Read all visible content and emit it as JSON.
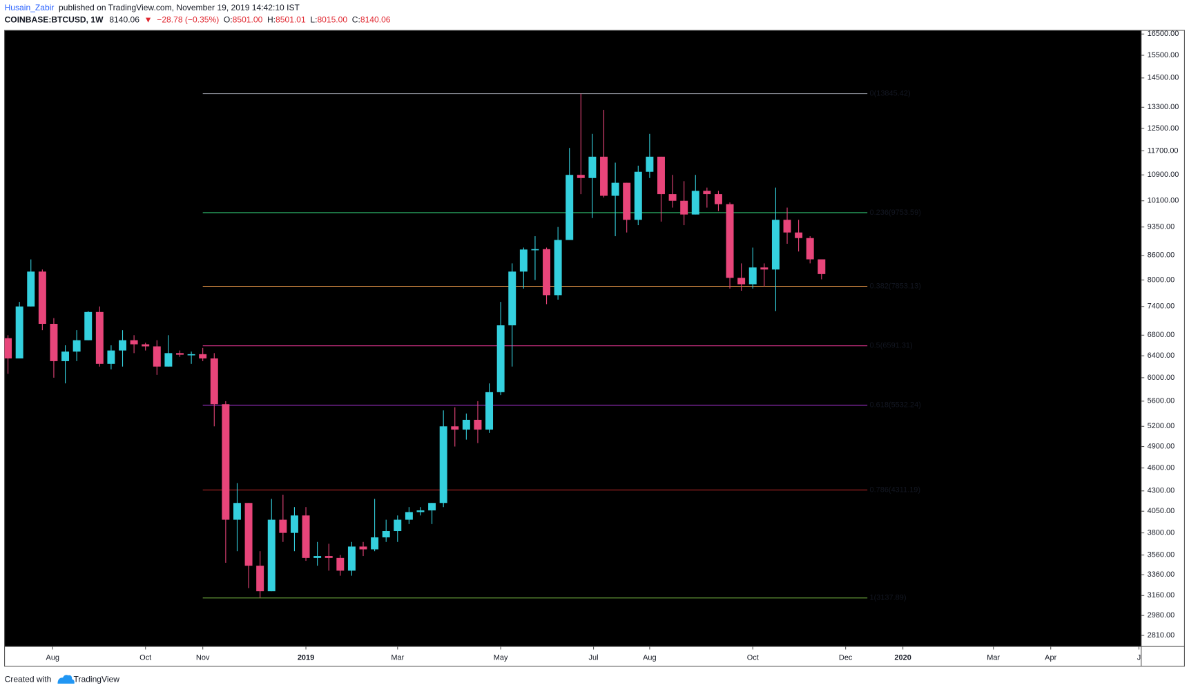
{
  "header": {
    "author": "Husain_Zabir",
    "published": "published on TradingView.com, November 19, 2019 14:42:10 IST",
    "symbol": "COINBASE:BTCUSD, 1W",
    "last": "8140.06",
    "arrow": "▼",
    "change": "−28.78 (−0.35%)",
    "ohlc": [
      {
        "key": "O:",
        "value": "8501.00"
      },
      {
        "key": "H:",
        "value": "8501.01"
      },
      {
        "key": "L:",
        "value": "8015.00"
      },
      {
        "key": "C:",
        "value": "8140.06"
      }
    ]
  },
  "chart_data": {
    "type": "candlestick",
    "categories": [
      null,
      null,
      null,
      null,
      null,
      null,
      null,
      null,
      null,
      null,
      null,
      null,
      null,
      null,
      null,
      null,
      null,
      null,
      null,
      null,
      null,
      null,
      null,
      null,
      null,
      null,
      null,
      null,
      null,
      null,
      null,
      null,
      null,
      null,
      null,
      null,
      null,
      null,
      null,
      null,
      null,
      null,
      null,
      null,
      null,
      null,
      null,
      null,
      null,
      null,
      null,
      null,
      null,
      null,
      null,
      null,
      null,
      null,
      null,
      null,
      null,
      null,
      null,
      null,
      null,
      null,
      null,
      null,
      null,
      null,
      null,
      null
    ],
    "open": [
      6740,
      6350,
      7400,
      8200,
      7030,
      6300,
      6480,
      6700,
      7280,
      6250,
      6500,
      6700,
      6620,
      6580,
      6200,
      6450,
      6420,
      6430,
      6350,
      5550,
      3950,
      4150,
      3450,
      3200,
      3950,
      3800,
      4000,
      3530,
      3550,
      3530,
      3400,
      3650,
      3620,
      3750,
      3820,
      3950,
      4040,
      4060,
      4150,
      5200,
      5150,
      5300,
      5150,
      5750,
      7000,
      8200,
      8750,
      8760,
      7650,
      9000,
      10900,
      10800,
      11500,
      10250,
      10650,
      9550,
      11000,
      11500,
      10300,
      10100,
      9700,
      10400,
      10300,
      10000,
      8050,
      7900,
      8300,
      8250,
      9550,
      9200,
      9050,
      8501
    ],
    "high": [
      6800,
      7500,
      8500,
      8250,
      7150,
      6600,
      6900,
      7300,
      7400,
      6600,
      6900,
      6800,
      6650,
      6700,
      6800,
      6500,
      6480,
      6550,
      6450,
      5600,
      4400,
      4150,
      3600,
      4200,
      4250,
      4100,
      4100,
      3700,
      3680,
      3560,
      3700,
      3700,
      4200,
      3950,
      4000,
      4100,
      4100,
      4150,
      5450,
      5500,
      5400,
      5600,
      5900,
      7500,
      8400,
      8800,
      9100,
      8800,
      9350,
      11800,
      13845.42,
      12300,
      13200,
      11300,
      10650,
      11200,
      12300,
      11500,
      10900,
      10700,
      10900,
      10500,
      10400,
      10050,
      8400,
      8800,
      8400,
      10500,
      9900,
      9550,
      9100,
      8501.01
    ],
    "low": [
      6070,
      6350,
      7400,
      6900,
      6000,
      5900,
      6300,
      6700,
      6200,
      6150,
      6200,
      6450,
      6500,
      6050,
      6200,
      6380,
      6250,
      6300,
      5200,
      3480,
      3600,
      3230,
      3140,
      3200,
      3700,
      3600,
      3500,
      3450,
      3400,
      3350,
      3350,
      3550,
      3600,
      3700,
      3700,
      3900,
      4000,
      3900,
      4100,
      4900,
      5000,
      4950,
      5100,
      5700,
      6200,
      7800,
      8000,
      7450,
      7550,
      9000,
      10300,
      9600,
      10200,
      9100,
      9200,
      9400,
      10800,
      9500,
      9900,
      9400,
      9700,
      9900,
      9800,
      7800,
      7750,
      7800,
      7850,
      7300,
      8900,
      8700,
      8400,
      8015
    ],
    "close": [
      6350,
      7400,
      8200,
      7030,
      6300,
      6480,
      6700,
      7280,
      6250,
      6500,
      6700,
      6620,
      6580,
      6200,
      6450,
      6420,
      6430,
      6350,
      5550,
      3950,
      4150,
      3450,
      3200,
      3950,
      3800,
      4000,
      3530,
      3550,
      3530,
      3400,
      3650,
      3620,
      3750,
      3820,
      3950,
      4040,
      4060,
      4150,
      5200,
      5150,
      5300,
      5150,
      5750,
      7000,
      8200,
      8750,
      8760,
      7650,
      9000,
      10900,
      10800,
      11500,
      10250,
      10650,
      9550,
      11000,
      11500,
      10300,
      10100,
      9700,
      10400,
      10300,
      10000,
      8050,
      7900,
      8300,
      8250,
      9550,
      9200,
      9050,
      8501,
      8140.06
    ],
    "up_color": "#34d0de",
    "down_color": "#e8457a",
    "log_scale": true,
    "ylim": [
      2720,
      16680
    ],
    "yticks": [
      {
        "value": 16500,
        "label": "16500.00"
      },
      {
        "value": 15500,
        "label": "15500.00"
      },
      {
        "value": 14500,
        "label": "14500.00"
      },
      {
        "value": 13300,
        "label": "13300.00"
      },
      {
        "value": 12500,
        "label": "12500.00"
      },
      {
        "value": 11700,
        "label": "11700.00"
      },
      {
        "value": 10900,
        "label": "10900.00"
      },
      {
        "value": 10100,
        "label": "10100.00"
      },
      {
        "value": 9350,
        "label": "9350.00"
      },
      {
        "value": 8600,
        "label": "8600.00"
      },
      {
        "value": 8000,
        "label": "8000.00"
      },
      {
        "value": 7400,
        "label": "7400.00"
      },
      {
        "value": 6800,
        "label": "6800.00"
      },
      {
        "value": 6400,
        "label": "6400.00"
      },
      {
        "value": 6000,
        "label": "6000.00"
      },
      {
        "value": 5600,
        "label": "5600.00"
      },
      {
        "value": 5200,
        "label": "5200.00"
      },
      {
        "value": 4900,
        "label": "4900.00"
      },
      {
        "value": 4600,
        "label": "4600.00"
      },
      {
        "value": 4300,
        "label": "4300.00"
      },
      {
        "value": 4050,
        "label": "4050.00"
      },
      {
        "value": 3800,
        "label": "3800.00"
      },
      {
        "value": 3560,
        "label": "3560.00"
      },
      {
        "value": 3360,
        "label": "3360.00"
      },
      {
        "value": 3160,
        "label": "3160.00"
      },
      {
        "value": 2980,
        "label": "2980.00"
      },
      {
        "value": 2810,
        "label": "2810.00"
      }
    ],
    "xlim": [
      -0.3,
      98.9
    ],
    "xticks": [
      {
        "value": 3.9,
        "label": "Aug"
      },
      {
        "value": 12,
        "label": "Oct"
      },
      {
        "value": 17,
        "label": "Nov"
      },
      {
        "value": 26,
        "label": "2019",
        "bold": true
      },
      {
        "value": 34,
        "label": "Mar"
      },
      {
        "value": 43,
        "label": "May"
      },
      {
        "value": 51.1,
        "label": "Jul"
      },
      {
        "value": 56,
        "label": "Aug"
      },
      {
        "value": 65,
        "label": "Oct"
      },
      {
        "value": 73.1,
        "label": "Dec"
      },
      {
        "value": 78.1,
        "label": "2020",
        "bold": true
      },
      {
        "value": 86,
        "label": "Mar"
      },
      {
        "value": 91,
        "label": "Apr"
      },
      {
        "value": 98.7,
        "label": "J"
      }
    ],
    "fib_levels": [
      {
        "value": 13845.42,
        "label": "0(13845.42)",
        "color": "#8a8d96"
      },
      {
        "value": 9753.59,
        "label": "0.236(9753.59)",
        "color": "#2fbf71"
      },
      {
        "value": 7853.13,
        "label": "0.382(7853.13)",
        "color": "#f6a04d"
      },
      {
        "value": 6591.31,
        "label": "0.5(6591.31)",
        "color": "#d6338a"
      },
      {
        "value": 5532.24,
        "label": "0.618(5532.24)",
        "color": "#9b30c4"
      },
      {
        "value": 4311.19,
        "label": "0.786(4311.19)",
        "color": "#d42d2d"
      },
      {
        "value": 3137.89,
        "label": "1(3137.89)",
        "color": "#6aa33c"
      }
    ]
  },
  "footer": {
    "text": "Created with",
    "brand": "TradingView"
  }
}
